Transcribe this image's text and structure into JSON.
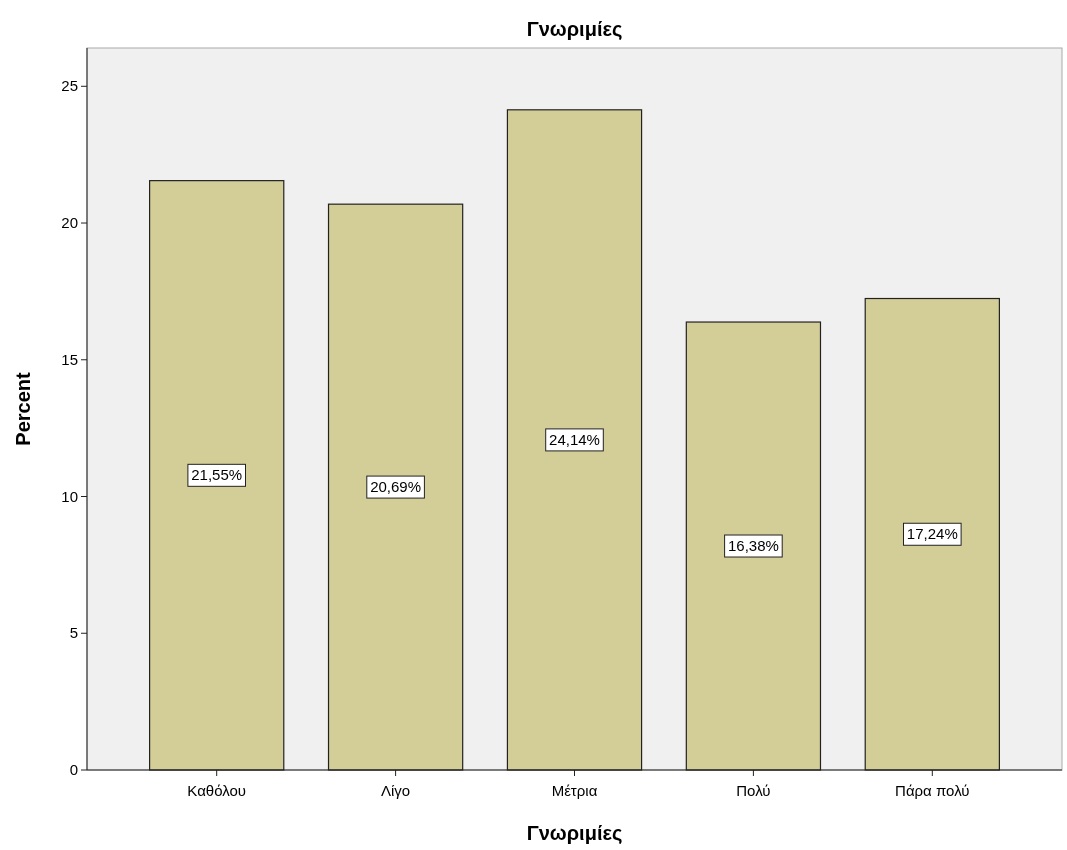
{
  "chart_data": {
    "type": "bar",
    "title": "Γνωριμίες",
    "xlabel": "Γνωριμίες",
    "ylabel": "Percent",
    "categories": [
      "Καθόλου",
      "Λίγο",
      "Μέτρια",
      "Πολύ",
      "Πάρα πολύ"
    ],
    "values": [
      21.55,
      20.69,
      24.14,
      16.38,
      17.24
    ],
    "value_labels": [
      "21,55%",
      "20,69%",
      "24,14%",
      "16,38%",
      "17,24%"
    ],
    "color": "#d3ce97",
    "ylim": [
      0,
      26.4
    ],
    "yticks": [
      0,
      5,
      10,
      15,
      20,
      25
    ],
    "grid": false
  }
}
